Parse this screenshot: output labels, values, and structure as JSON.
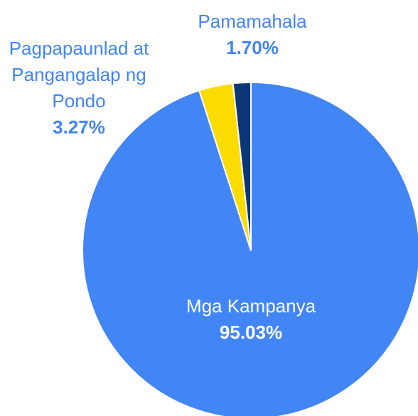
{
  "chart_data": {
    "type": "pie",
    "categories": [
      "Mga Kampanya",
      "Pagpapaunlad at Pangangalap ng Pondo",
      "Pamamahala"
    ],
    "values": [
      95.03,
      3.27,
      1.7
    ],
    "value_labels": [
      "95.03%",
      "3.27%",
      "1.70%"
    ],
    "colors": [
      "#4285f4",
      "#fbdc00",
      "#0d3677"
    ]
  }
}
